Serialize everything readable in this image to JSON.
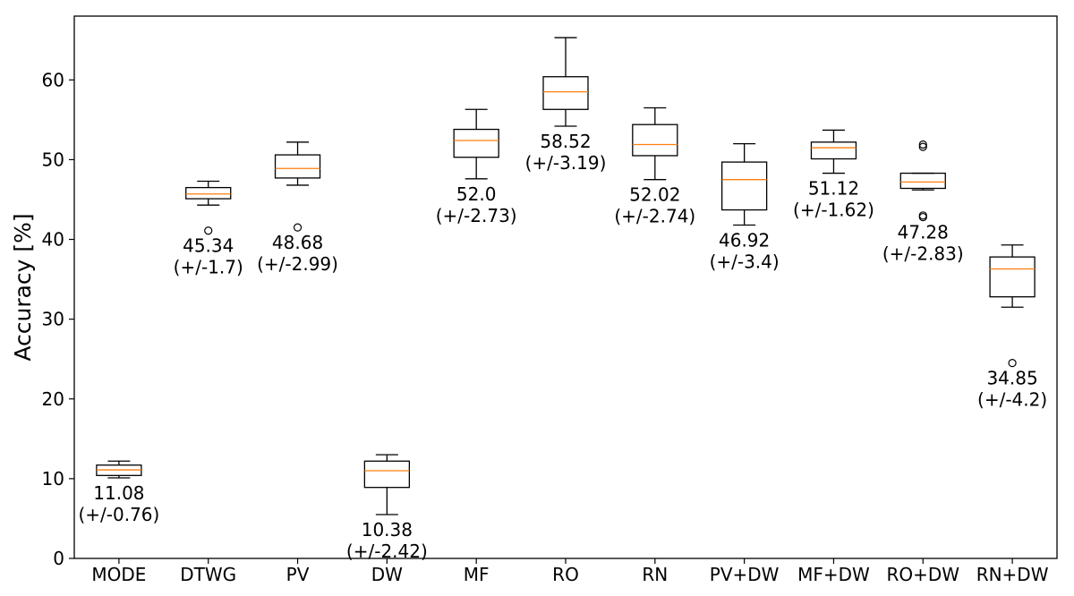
{
  "chart_data": {
    "type": "box",
    "title": "",
    "xlabel": "",
    "ylabel": "Accuracy [%]",
    "ylim": [
      0,
      68
    ],
    "yticks": [
      0,
      10,
      20,
      30,
      40,
      50,
      60
    ],
    "grid": false,
    "categories": [
      "MODE",
      "DTWG",
      "PV",
      "DW",
      "MF",
      "RO",
      "RN",
      "PV+DW",
      "MF+DW",
      "RO+DW",
      "RN+DW"
    ],
    "boxes": [
      {
        "category": "MODE",
        "whisker_low": 10.1,
        "q1": 10.4,
        "median": 11.1,
        "q3": 11.7,
        "whisker_high": 12.2,
        "outliers": [],
        "mean_label": "11.08",
        "std_label": "(+/-0.76)"
      },
      {
        "category": "DTWG",
        "whisker_low": 44.3,
        "q1": 45.1,
        "median": 45.7,
        "q3": 46.5,
        "whisker_high": 47.3,
        "outliers": [
          41.1
        ],
        "mean_label": "45.34",
        "std_label": "(+/-1.7)"
      },
      {
        "category": "PV",
        "whisker_low": 46.8,
        "q1": 47.7,
        "median": 48.9,
        "q3": 50.6,
        "whisker_high": 52.2,
        "outliers": [
          41.5
        ],
        "mean_label": "48.68",
        "std_label": "(+/-2.99)"
      },
      {
        "category": "DW",
        "whisker_low": 5.5,
        "q1": 8.9,
        "median": 11.0,
        "q3": 12.2,
        "whisker_high": 13.0,
        "outliers": [],
        "mean_label": "10.38",
        "std_label": "(+/-2.42)"
      },
      {
        "category": "MF",
        "whisker_low": 47.6,
        "q1": 50.3,
        "median": 52.4,
        "q3": 53.8,
        "whisker_high": 56.3,
        "outliers": [],
        "mean_label": "52.0",
        "std_label": "(+/-2.73)"
      },
      {
        "category": "RO",
        "whisker_low": 54.2,
        "q1": 56.3,
        "median": 58.5,
        "q3": 60.4,
        "whisker_high": 65.3,
        "outliers": [],
        "mean_label": "58.52",
        "std_label": "(+/-3.19)"
      },
      {
        "category": "RN",
        "whisker_low": 47.5,
        "q1": 50.5,
        "median": 51.9,
        "q3": 54.4,
        "whisker_high": 56.5,
        "outliers": [],
        "mean_label": "52.02",
        "std_label": "(+/-2.74)"
      },
      {
        "category": "PV+DW",
        "whisker_low": 41.8,
        "q1": 43.7,
        "median": 47.5,
        "q3": 49.7,
        "whisker_high": 52.0,
        "outliers": [],
        "mean_label": "46.92",
        "std_label": "(+/-3.4)"
      },
      {
        "category": "MF+DW",
        "whisker_low": 48.3,
        "q1": 50.1,
        "median": 51.5,
        "q3": 52.2,
        "whisker_high": 53.7,
        "outliers": [],
        "mean_label": "51.12",
        "std_label": "(+/-1.62)"
      },
      {
        "category": "RO+DW",
        "whisker_low": 46.2,
        "q1": 46.4,
        "median": 47.2,
        "q3": 48.3,
        "whisker_high": 48.3,
        "outliers": [
          51.6,
          51.9,
          42.8,
          43.0
        ],
        "mean_label": "47.28",
        "std_label": "(+/-2.83)"
      },
      {
        "category": "RN+DW",
        "whisker_low": 31.5,
        "q1": 32.8,
        "median": 36.3,
        "q3": 37.8,
        "whisker_high": 39.3,
        "outliers": [
          24.5
        ],
        "mean_label": "34.85",
        "std_label": "(+/-4.2)"
      }
    ],
    "colors": {
      "box": "#000000",
      "median": "#ff7f0e",
      "outlier": "#000000"
    }
  }
}
